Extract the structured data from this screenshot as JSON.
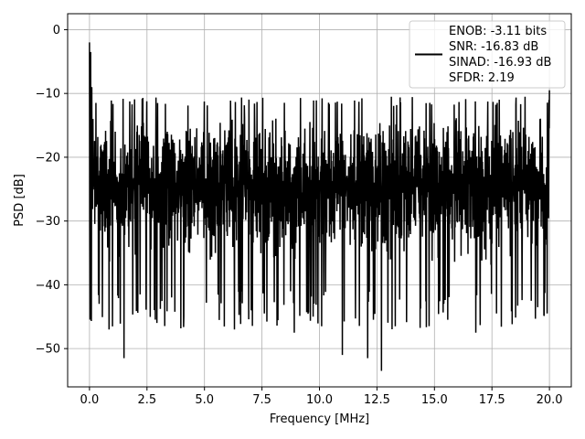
{
  "chart_data": {
    "type": "line",
    "xlabel": "Frequency [MHz]",
    "ylabel": "PSD [dB]",
    "xlim": [
      -0.95,
      20.95
    ],
    "ylim": [
      -56,
      2.5
    ],
    "xticks": [
      0.0,
      2.5,
      5.0,
      7.5,
      10.0,
      12.5,
      15.0,
      17.5,
      20.0
    ],
    "xtick_labels": [
      "0.0",
      "2.5",
      "5.0",
      "7.5",
      "10.0",
      "12.5",
      "15.0",
      "17.5",
      "20.0"
    ],
    "yticks": [
      0,
      -10,
      -20,
      -30,
      -40,
      -50
    ],
    "ytick_labels": [
      "0",
      "−10",
      "−20",
      "−30",
      "−40",
      "−50"
    ],
    "grid": true,
    "legend_position": "top-right",
    "legend_lines": [
      "ENOB: -3.11 bits",
      "SNR: -16.83 dB",
      "SINAD: -16.93 dB",
      "SFDR: 2.19"
    ],
    "series": [
      {
        "color": "#000000",
        "style": "noise-floor",
        "x_range": [
          0,
          20
        ],
        "points": 2000,
        "seed": 12345,
        "upper_envelope": -13,
        "lower_envelope": -38,
        "peaks": [
          {
            "x": 0.0,
            "y": -2.0
          },
          {
            "x": 0.05,
            "y": -3.5
          },
          {
            "x": 0.1,
            "y": -9.0
          },
          {
            "x": 0.15,
            "y": -14.0
          },
          {
            "x": 20.0,
            "y": -9.5
          }
        ],
        "dips": [
          {
            "x": 0.4,
            "y": -36.5
          },
          {
            "x": 0.85,
            "y": -47.0
          },
          {
            "x": 1.5,
            "y": -51.5
          },
          {
            "x": 2.2,
            "y": -41.5
          },
          {
            "x": 4.1,
            "y": -45.0
          },
          {
            "x": 6.3,
            "y": -47.0
          },
          {
            "x": 7.6,
            "y": -44.5
          },
          {
            "x": 8.9,
            "y": -47.5
          },
          {
            "x": 10.1,
            "y": -46.5
          },
          {
            "x": 11.0,
            "y": -51.0
          },
          {
            "x": 12.1,
            "y": -51.5
          },
          {
            "x": 12.7,
            "y": -53.5
          },
          {
            "x": 13.3,
            "y": -46.5
          },
          {
            "x": 16.8,
            "y": -47.5
          },
          {
            "x": 17.7,
            "y": -44.5
          },
          {
            "x": 19.9,
            "y": -44.5
          }
        ]
      }
    ]
  }
}
